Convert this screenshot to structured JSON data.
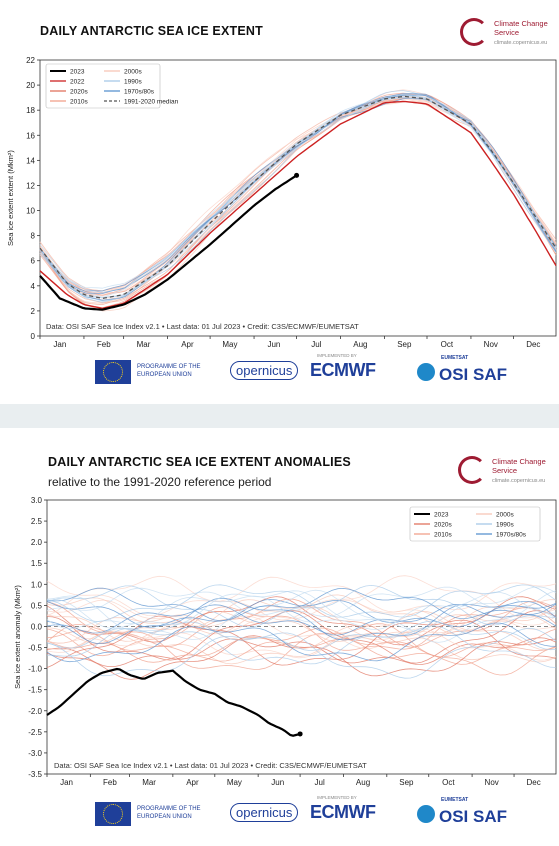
{
  "panel1": {
    "title": "DAILY ANTARCTIC SEA ICE EXTENT",
    "ylabel": "Sea ice extent extent (Mkm²)",
    "credit": "Data: OSI SAF Sea Ice Index v2.1 • Last data: 01 Jul 2023 • Credit: C3S/ECMWF/EUMETSAT",
    "legend": [
      {
        "label": "2023",
        "color": "#000000"
      },
      {
        "label": "2000s",
        "color": "#f7c6b6"
      },
      {
        "label": "2022",
        "color": "#cc2222"
      },
      {
        "label": "1990s",
        "color": "#a7c9e8"
      },
      {
        "label": "2020s",
        "color": "#e0735f"
      },
      {
        "label": "1970s/80s",
        "color": "#5b93cf"
      },
      {
        "label": "2010s",
        "color": "#f0a08c"
      },
      {
        "label": "1991-2020 median",
        "color": "#555555"
      }
    ]
  },
  "panel2": {
    "title": "DAILY ANTARCTIC SEA ICE EXTENT ANOMALIES",
    "subtitle": "relative to the 1991-2020 reference period",
    "ylabel": "Sea ice extent anomaly (Mkm²)",
    "credit": "Data: OSI SAF Sea Ice Index v2.1 • Last data: 01 Jul 2023 • Credit: C3S/ECMWF/EUMETSAT",
    "legend": [
      {
        "label": "2023",
        "color": "#000000"
      },
      {
        "label": "2000s",
        "color": "#f7c6b6"
      },
      {
        "label": "2020s",
        "color": "#e0735f"
      },
      {
        "label": "1990s",
        "color": "#a7c9e8"
      },
      {
        "label": "2010s",
        "color": "#f0a08c"
      },
      {
        "label": "1970s/80s",
        "color": "#5b93cf"
      }
    ]
  },
  "branding": {
    "c3s_name": "Climate Change Service",
    "c3s_url": "climate.copernicus.eu",
    "eu_text": "PROGRAMME OF THE EUROPEAN UNION",
    "copernicus": "opernicus",
    "ecmwf": "ECMWF",
    "ecmwf_pre": "IMPLEMENTED BY",
    "osisaf": "OSI SAF",
    "osisaf_pre": "EUMETSAT"
  },
  "colors": {
    "brand_red": "#9e1b32",
    "brand_blue": "#1f3f99",
    "y2023": "#000000",
    "y2022": "#cc2222",
    "median": "#555555"
  },
  "chart_data": [
    {
      "type": "line",
      "title": "DAILY ANTARCTIC SEA ICE EXTENT",
      "ylabel": "Sea ice extent extent (Mkm²)",
      "categories": [
        "Jan",
        "Feb",
        "Mar",
        "Apr",
        "May",
        "Jun",
        "Jul",
        "Aug",
        "Sep",
        "Oct",
        "Nov",
        "Dec"
      ],
      "yticks": [
        0,
        2,
        4,
        6,
        8,
        10,
        12,
        14,
        16,
        18,
        20,
        22
      ],
      "ylim": [
        0,
        22
      ],
      "legend_position": "top-left",
      "series": [
        {
          "name": "2023",
          "color": "#000000",
          "x": [
            1,
            15,
            32,
            45,
            60,
            75,
            91,
            106,
            121,
            136,
            152,
            167,
            182
          ],
          "values": [
            4.8,
            3.0,
            2.2,
            2.1,
            2.5,
            3.3,
            4.5,
            5.9,
            7.3,
            8.8,
            10.4,
            11.7,
            12.8
          ]
        },
        {
          "name": "2022",
          "color": "#cc2222",
          "x": [
            1,
            20,
            32,
            45,
            60,
            91,
            121,
            152,
            182,
            213,
            244,
            258,
            274,
            305,
            320,
            335,
            350,
            365
          ],
          "values": [
            5.2,
            3.3,
            2.5,
            2.2,
            2.6,
            4.9,
            8.2,
            11.3,
            14.3,
            16.9,
            18.6,
            18.7,
            18.5,
            16.2,
            13.8,
            11.3,
            8.5,
            5.6
          ]
        },
        {
          "name": "1991-2020 median",
          "color": "#555555",
          "x": [
            1,
            20,
            32,
            45,
            60,
            91,
            121,
            152,
            182,
            213,
            244,
            258,
            274,
            305,
            320,
            335,
            350,
            365
          ],
          "values": [
            7.0,
            4.2,
            3.3,
            3.0,
            3.3,
            5.6,
            9.0,
            12.3,
            15.3,
            17.6,
            18.9,
            19.1,
            18.9,
            16.9,
            14.7,
            12.2,
            9.6,
            7.0
          ]
        }
      ]
    },
    {
      "type": "line",
      "title": "DAILY ANTARCTIC SEA ICE EXTENT ANOMALIES",
      "subtitle": "relative to the 1991-2020 reference period",
      "ylabel": "Sea ice extent anomaly (Mkm²)",
      "categories": [
        "Jan",
        "Feb",
        "Mar",
        "Apr",
        "May",
        "Jun",
        "Jul",
        "Aug",
        "Sep",
        "Oct",
        "Nov",
        "Dec"
      ],
      "yticks": [
        -3.5,
        -3.0,
        -2.5,
        -2.0,
        -1.5,
        -1.0,
        -0.5,
        0.0,
        0.5,
        1.0,
        1.5,
        2.0,
        2.5,
        3.0
      ],
      "ylim": [
        -3.5,
        3.0
      ],
      "legend_position": "top-right",
      "series": [
        {
          "name": "2023",
          "color": "#000000",
          "x": [
            1,
            10,
            20,
            30,
            40,
            52,
            60,
            70,
            80,
            91,
            100,
            110,
            121,
            130,
            140,
            152,
            160,
            170,
            176,
            182
          ],
          "values": [
            -2.1,
            -1.9,
            -1.6,
            -1.3,
            -1.1,
            -1.0,
            -1.15,
            -1.25,
            -1.1,
            -1.05,
            -1.3,
            -1.5,
            -1.6,
            -1.8,
            -1.9,
            -2.1,
            -2.3,
            -2.45,
            -2.6,
            -2.55
          ]
        }
      ]
    }
  ]
}
